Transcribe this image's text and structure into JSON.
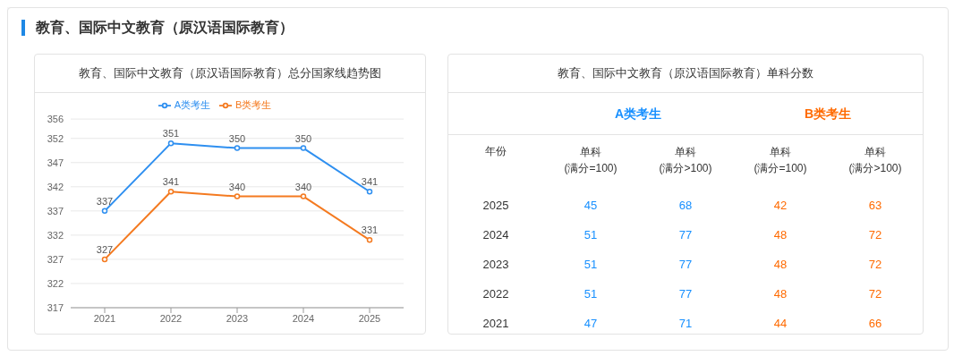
{
  "chart_data": [
    {
      "type": "line",
      "title": "教育、国际中文教育（原汉语国际教育）总分国家线趋势图",
      "annotations": [
        "教育、国际中文教育（原汉语国际教育）"
      ],
      "categories": [
        "2021",
        "2022",
        "2023",
        "2024",
        "2025"
      ],
      "series": [
        {
          "name": "A类考生",
          "color": "#2e8ff0",
          "values": [
            337,
            351,
            350,
            350,
            341
          ]
        },
        {
          "name": "B类考生",
          "color": "#f47a20",
          "values": [
            327,
            341,
            340,
            340,
            331
          ]
        }
      ],
      "ylim": [
        317,
        356
      ],
      "yticks": [
        317,
        322,
        327,
        332,
        337,
        342,
        347,
        352,
        356
      ],
      "grid": "y",
      "legend": "top",
      "marker": "circle",
      "data_labels": true
    },
    {
      "type": "heatmap",
      "title": "教育、国际中文教育（原汉语国际教育）单科分数",
      "annotations": [
        "年份",
        "A类考生",
        "B类考生"
      ],
      "categories": [
        "单科\n(满分=100)",
        "单科\n(满分>100)",
        "单科\n(满分=100)",
        "单科\n(满分>100)"
      ],
      "colors": [
        "#1890ff",
        "#1890ff",
        "#ff6a00",
        "#ff6a00"
      ],
      "y_categories": [
        "2025",
        "2024",
        "2023",
        "2022",
        "2021"
      ],
      "cells": [
        [
          45,
          68,
          42,
          63
        ],
        [
          51,
          77,
          48,
          72
        ],
        [
          51,
          77,
          48,
          72
        ],
        [
          51,
          77,
          48,
          72
        ],
        [
          47,
          71,
          44,
          66
        ]
      ],
      "data_labels": true
    }
  ]
}
